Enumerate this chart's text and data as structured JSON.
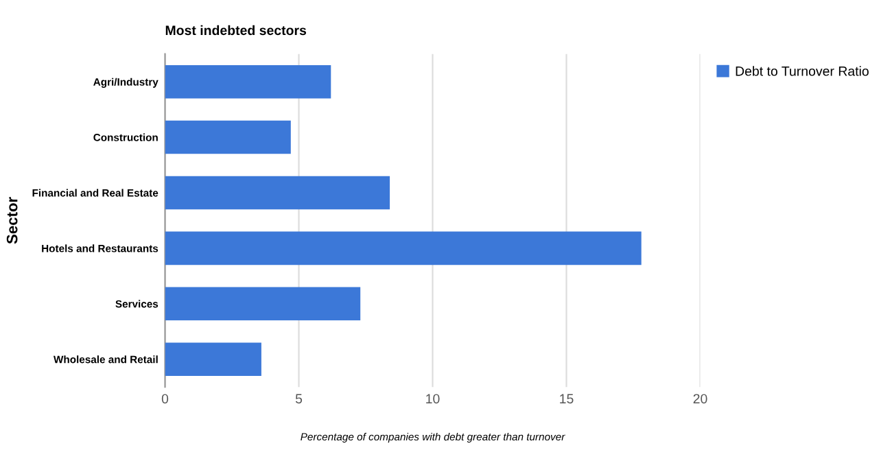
{
  "chart_data": {
    "type": "bar",
    "orientation": "horizontal",
    "title": "Most indebted sectors",
    "xlabel": "Percentage of companies with debt greater than turnover",
    "ylabel": "Sector",
    "categories": [
      "Agri/Industry",
      "Construction",
      "Financial and Real Estate",
      "Hotels and Restaurants",
      "Services",
      "Wholesale and Retail"
    ],
    "series": [
      {
        "name": "Debt to Turnover Ratio",
        "color": "#3c78d8",
        "values": [
          6.2,
          4.7,
          8.4,
          17.8,
          7.3,
          3.6
        ]
      }
    ],
    "xlim": [
      0,
      20
    ],
    "xticks": [
      0,
      5,
      10,
      15,
      20
    ],
    "grid": "x",
    "legend": "top right"
  }
}
